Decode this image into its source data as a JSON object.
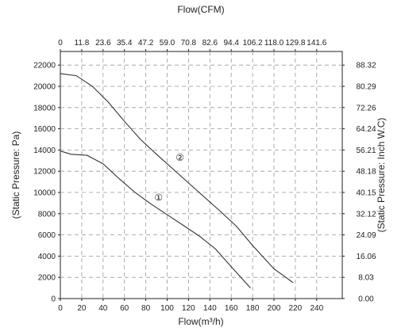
{
  "chart_data": {
    "type": "line",
    "title": "",
    "xlabel_bottom": "Flow(m³/h)",
    "xlabel_top": "Flow(CFM)",
    "ylabel_left": "(Static Pressure: Pa)",
    "ylabel_right": "(Static Pressure: Inch W.C)",
    "xlim": [
      0,
      260
    ],
    "ylim": [
      0,
      23000
    ],
    "grid": true,
    "x_ticks_bottom": [
      "0",
      "20",
      "40",
      "60",
      "80",
      "100",
      "120",
      "140",
      "160",
      "180",
      "200",
      "220",
      "240"
    ],
    "x_ticks_top": [
      "0",
      "11.8",
      "23.6",
      "35.4",
      "47.2",
      "59.0",
      "70.8",
      "82.6",
      "94.4",
      "106.2",
      "118.0",
      "129.8",
      "141.6"
    ],
    "y_ticks_left": [
      "0",
      "2000",
      "4000",
      "6000",
      "8000",
      "10000",
      "12000",
      "14000",
      "16000",
      "18000",
      "20000",
      "22000"
    ],
    "y_ticks_right": [
      "0.00",
      "8.03",
      "16.06",
      "24.09",
      "32.12",
      "40.15",
      "48.18",
      "56.21",
      "64.24",
      "72.26",
      "80.29",
      "88.32"
    ],
    "series": [
      {
        "name": "①",
        "label_point": [
          92,
          9500
        ],
        "x": [
          0,
          10,
          25,
          40,
          55,
          70,
          85,
          100,
          115,
          130,
          145,
          160,
          178
        ],
        "y": [
          13900,
          13600,
          13500,
          12700,
          11300,
          10000,
          8900,
          7900,
          6900,
          5900,
          4700,
          3000,
          1000
        ]
      },
      {
        "name": "②",
        "label_point": [
          112,
          13300
        ],
        "x": [
          0,
          15,
          30,
          45,
          60,
          75,
          90,
          110,
          130,
          150,
          165,
          180,
          200,
          218
        ],
        "y": [
          21200,
          21000,
          20000,
          18500,
          16700,
          15000,
          13600,
          11800,
          10000,
          8200,
          6800,
          5000,
          2800,
          1500
        ]
      }
    ]
  }
}
